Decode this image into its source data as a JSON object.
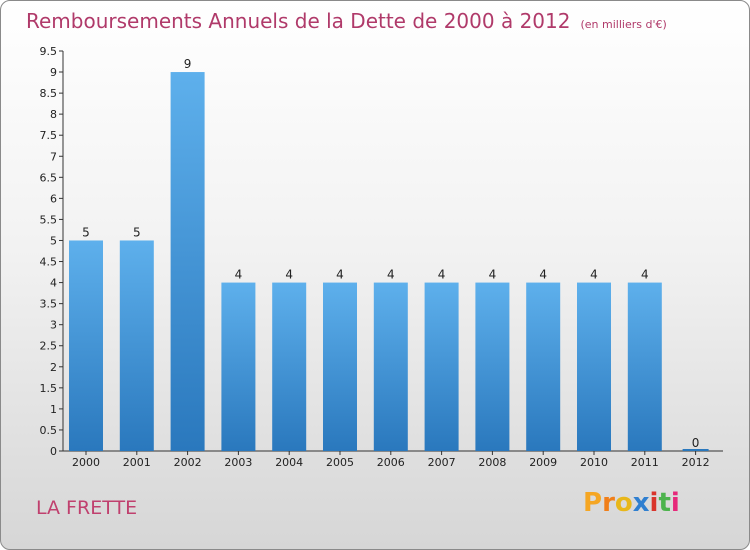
{
  "header": {
    "title": "Remboursements Annuels de la Dette de 2000 à 2012",
    "unit": "(en milliers d'€)"
  },
  "footer": {
    "city": "LA FRETTE",
    "logo": [
      "P",
      "r",
      "o",
      "x",
      "i",
      "t",
      "i"
    ]
  },
  "colors": {
    "bar_top": "#5eb0ec",
    "bar_bottom": "#2a78bd",
    "title": "#b03a6a",
    "logo": [
      "#f5a623",
      "#f07f1a",
      "#e8b71a",
      "#2f7fd0",
      "#d9342b",
      "#4db34d",
      "#e6287a"
    ]
  },
  "chart_data": {
    "type": "bar",
    "categories": [
      "2000",
      "2001",
      "2002",
      "2003",
      "2004",
      "2005",
      "2006",
      "2007",
      "2008",
      "2009",
      "2010",
      "2011",
      "2012"
    ],
    "values": [
      5,
      5,
      9,
      4,
      4,
      4,
      4,
      4,
      4,
      4,
      4,
      4,
      0
    ],
    "data_labels": [
      "5",
      "5",
      "9",
      "4",
      "4",
      "4",
      "4",
      "4",
      "4",
      "4",
      "4",
      "4",
      "0"
    ],
    "ylim": [
      0,
      9.5
    ],
    "yticks": [
      0,
      0.5,
      1,
      1.5,
      2,
      2.5,
      3,
      3.5,
      4,
      4.5,
      5,
      5.5,
      6,
      6.5,
      7,
      7.5,
      8,
      8.5,
      9,
      9.5
    ],
    "ytick_labels": [
      "0",
      "0.5",
      "1",
      "1.5",
      "2",
      "2.5",
      "3",
      "3.5",
      "4",
      "4.5",
      "5",
      "5.5",
      "6",
      "6.5",
      "7",
      "7.5",
      "8",
      "8.5",
      "9",
      "9.5"
    ],
    "grid": false,
    "legend": "none"
  }
}
